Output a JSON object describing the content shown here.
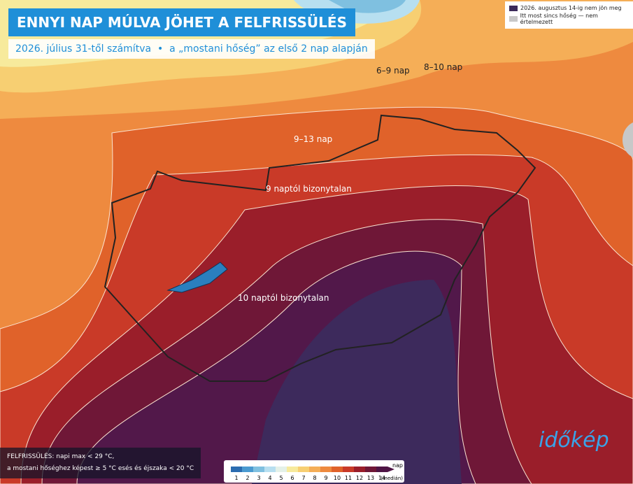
{
  "header": {
    "title": "ENNYI NAP MÚLVA JÖHET A FELFRISSÜLÉS",
    "subtitle": "2026. július 31-től számítva  •  a „mostani hőség” az első 2 nap alapján"
  },
  "legend": [
    {
      "label": "2026. augusztus 14-ig nem jön meg",
      "color": "#3b2a5a"
    },
    {
      "label": "Itt most sincs hőség — nem értelmezett",
      "color": "#c8c8c8"
    }
  ],
  "map_labels": [
    "6–9 nap",
    "8–10 nap",
    "9–13 nap",
    "9 naptól bizonytalan",
    "10 naptól bizonytalan"
  ],
  "footnote": [
    "FELFRISSÜLÉS: napi max < 29 °C,",
    "a mostani hőséghez képest ≥ 5 °C esés és éjszaka < 20 °C"
  ],
  "colorbar": {
    "ticks": [
      1,
      2,
      3,
      4,
      5,
      6,
      7,
      8,
      9,
      10,
      11,
      12,
      13,
      14
    ],
    "colors": [
      "#2b6cb0",
      "#4a9ad0",
      "#7fc0e0",
      "#b7dff0",
      "#e4f1e8",
      "#f7ea9c",
      "#f7cf72",
      "#f5ae57",
      "#ee8a3f",
      "#e0622a",
      "#c93a28",
      "#9a1e2a",
      "#6f1737",
      "#4e1445"
    ],
    "unit": "nap",
    "unit_note": "(medián)"
  },
  "logo": "időkép"
}
